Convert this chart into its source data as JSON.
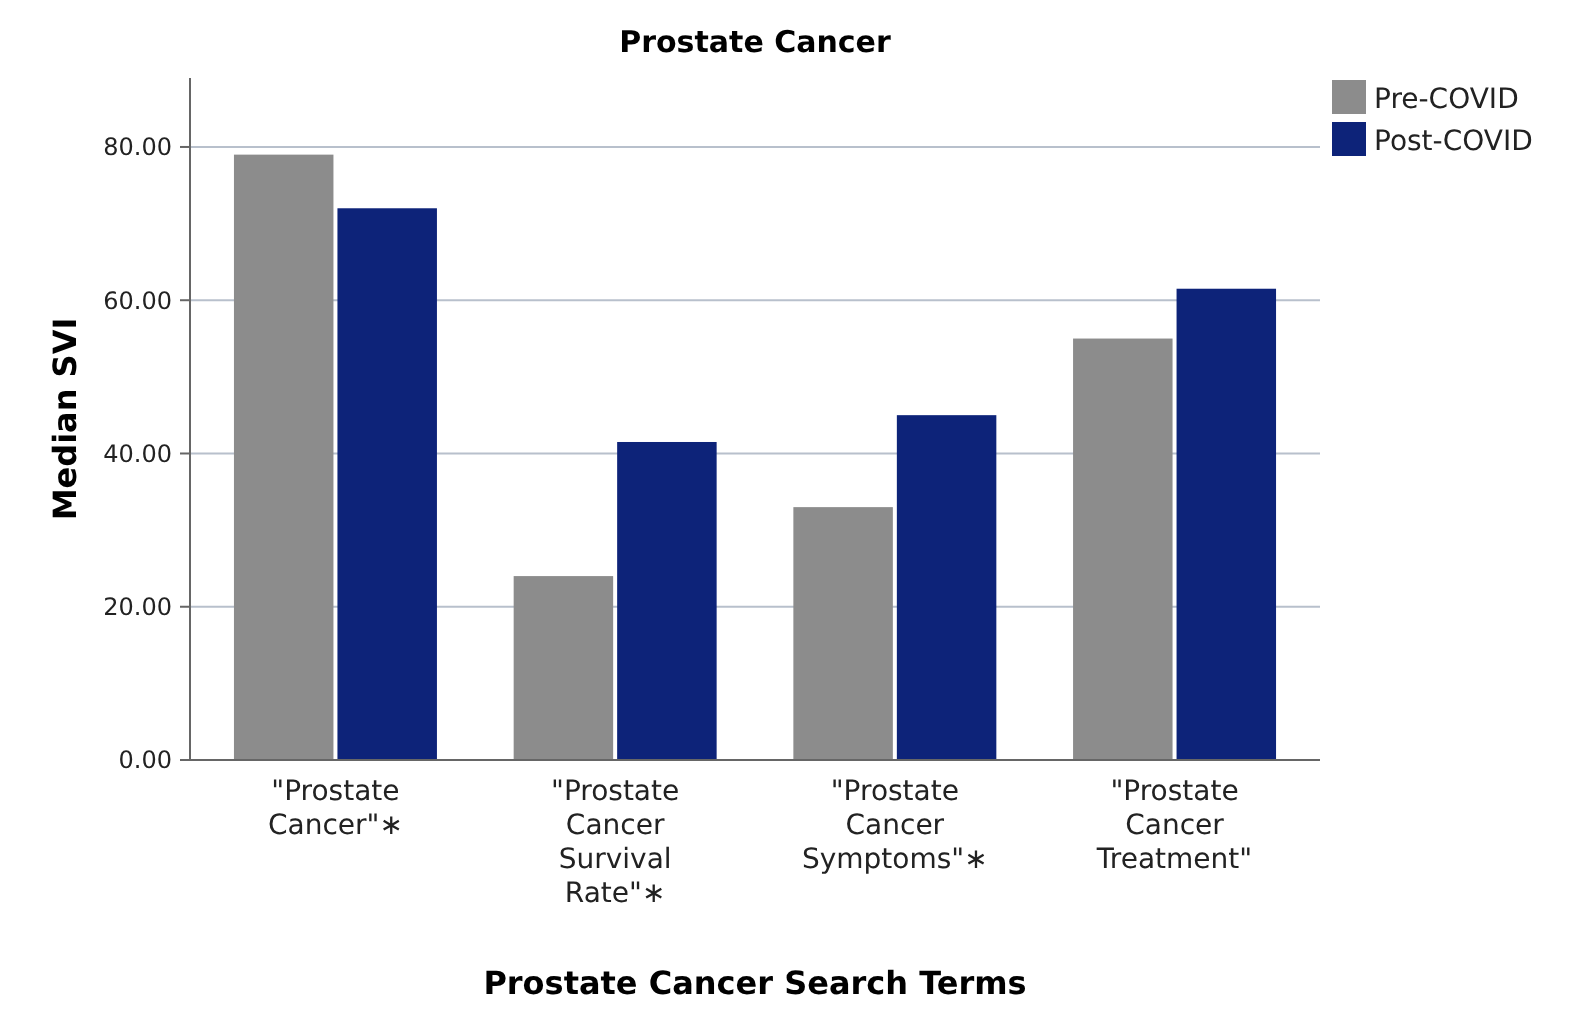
{
  "chart_data": {
    "type": "bar",
    "title": "Prostate Cancer",
    "xlabel": "Prostate Cancer Search Terms",
    "ylabel": "Median SVI",
    "categories": [
      "\"Prostate Cancer\"∗",
      "\"Prostate Cancer Survival Rate\"∗",
      "\"Prostate Cancer Symptoms\"∗",
      "\"Prostate Cancer Treatment\""
    ],
    "series": [
      {
        "name": "Pre-COVID",
        "color": "#8c8c8c",
        "values": [
          79,
          24,
          33,
          55
        ]
      },
      {
        "name": "Post-COVID",
        "color": "#0d2379",
        "values": [
          72,
          41.5,
          45,
          61.5
        ]
      }
    ],
    "ylim": [
      0,
      89
    ],
    "yticks": [
      {
        "value": 0,
        "label": "0.00"
      },
      {
        "value": 20,
        "label": "20.00"
      },
      {
        "value": 40,
        "label": "40.00"
      },
      {
        "value": 60,
        "label": "60.00"
      },
      {
        "value": 80,
        "label": "80.00"
      }
    ],
    "grid": "y",
    "legend": "top right"
  }
}
